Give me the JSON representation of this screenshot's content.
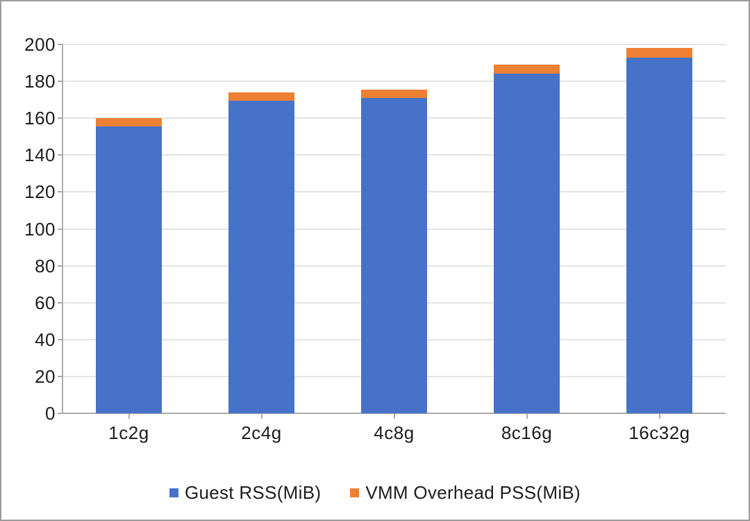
{
  "chart_data": {
    "type": "bar",
    "stacked": true,
    "title": "",
    "xlabel": "",
    "ylabel": "",
    "categories": [
      "1c2g",
      "2c4g",
      "4c8g",
      "8c16g",
      "16c32g"
    ],
    "series": [
      {
        "name": "Guest RSS(MiB)",
        "color": "#4673C8",
        "values": [
          155.5,
          169.5,
          171,
          184,
          193
        ]
      },
      {
        "name": "VMM Overhead PSS(MiB)",
        "color": "#EE8033",
        "values": [
          4.5,
          4.5,
          4.5,
          5,
          5
        ]
      }
    ],
    "stack_totals": [
      160,
      174,
      175.5,
      189,
      198
    ],
    "ylim": [
      0,
      200
    ],
    "ytick_step": 20,
    "ytick_labels": [
      "0",
      "20",
      "40",
      "60",
      "80",
      "100",
      "120",
      "140",
      "160",
      "180",
      "200"
    ],
    "grid": true,
    "legend_position": "bottom"
  },
  "colors": {
    "grid_line": "#e4e4e4",
    "axis_line": "#ababab",
    "tick_mark": "#ababab",
    "text": "#1d1d1d",
    "frame_border": "#9b9b9b",
    "background": "#ffffff"
  }
}
